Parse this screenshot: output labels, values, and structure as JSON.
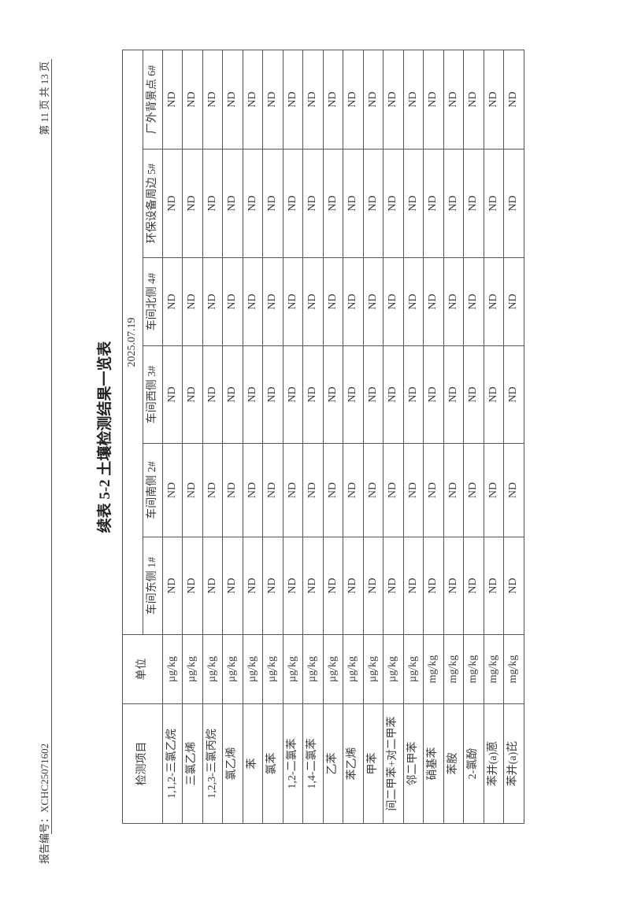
{
  "header": {
    "report_no": "报告编号：XCHC25071602",
    "page": "第 11 页 共 13 页"
  },
  "title": "续表 5-2 土壤检测结果一览表",
  "table": {
    "col_item": "检测项目",
    "col_unit": "单位",
    "date": "2025.07.19",
    "points": [
      "车间东侧 1#",
      "车间南侧 2#",
      "车间西侧 3#",
      "车间北侧 4#",
      "环保设备周边 5#",
      "厂外背景点 6#"
    ],
    "rows": [
      {
        "item": "1,1,2-三氯乙烷",
        "unit": "µg/kg",
        "values": [
          "ND",
          "ND",
          "ND",
          "ND",
          "ND",
          "ND"
        ]
      },
      {
        "item": "三氯乙烯",
        "unit": "µg/kg",
        "values": [
          "ND",
          "ND",
          "ND",
          "ND",
          "ND",
          "ND"
        ]
      },
      {
        "item": "1,2,3-三氯丙烷",
        "unit": "µg/kg",
        "values": [
          "ND",
          "ND",
          "ND",
          "ND",
          "ND",
          "ND"
        ]
      },
      {
        "item": "氯乙烯",
        "unit": "µg/kg",
        "values": [
          "ND",
          "ND",
          "ND",
          "ND",
          "ND",
          "ND"
        ]
      },
      {
        "item": "苯",
        "unit": "µg/kg",
        "values": [
          "ND",
          "ND",
          "ND",
          "ND",
          "ND",
          "ND"
        ]
      },
      {
        "item": "氯苯",
        "unit": "µg/kg",
        "values": [
          "ND",
          "ND",
          "ND",
          "ND",
          "ND",
          "ND"
        ]
      },
      {
        "item": "1,2-二氯苯",
        "unit": "µg/kg",
        "values": [
          "ND",
          "ND",
          "ND",
          "ND",
          "ND",
          "ND"
        ]
      },
      {
        "item": "1,4-二氯苯",
        "unit": "µg/kg",
        "values": [
          "ND",
          "ND",
          "ND",
          "ND",
          "ND",
          "ND"
        ]
      },
      {
        "item": "乙苯",
        "unit": "µg/kg",
        "values": [
          "ND",
          "ND",
          "ND",
          "ND",
          "ND",
          "ND"
        ]
      },
      {
        "item": "苯乙烯",
        "unit": "µg/kg",
        "values": [
          "ND",
          "ND",
          "ND",
          "ND",
          "ND",
          "ND"
        ]
      },
      {
        "item": "甲苯",
        "unit": "µg/kg",
        "values": [
          "ND",
          "ND",
          "ND",
          "ND",
          "ND",
          "ND"
        ]
      },
      {
        "item": "间二甲苯+对二甲苯",
        "unit": "µg/kg",
        "values": [
          "ND",
          "ND",
          "ND",
          "ND",
          "ND",
          "ND"
        ]
      },
      {
        "item": "邻二甲苯",
        "unit": "µg/kg",
        "values": [
          "ND",
          "ND",
          "ND",
          "ND",
          "ND",
          "ND"
        ]
      },
      {
        "item": "硝基苯",
        "unit": "mg/kg",
        "values": [
          "ND",
          "ND",
          "ND",
          "ND",
          "ND",
          "ND"
        ]
      },
      {
        "item": "苯胺",
        "unit": "mg/kg",
        "values": [
          "ND",
          "ND",
          "ND",
          "ND",
          "ND",
          "ND"
        ]
      },
      {
        "item": "2-氯酚",
        "unit": "mg/kg",
        "values": [
          "ND",
          "ND",
          "ND",
          "ND",
          "ND",
          "ND"
        ]
      },
      {
        "item": "苯并(a)蒽",
        "unit": "mg/kg",
        "values": [
          "ND",
          "ND",
          "ND",
          "ND",
          "ND",
          "ND"
        ]
      },
      {
        "item": "苯并(a)芘",
        "unit": "mg/kg",
        "values": [
          "ND",
          "ND",
          "ND",
          "ND",
          "ND",
          "ND"
        ]
      }
    ]
  }
}
